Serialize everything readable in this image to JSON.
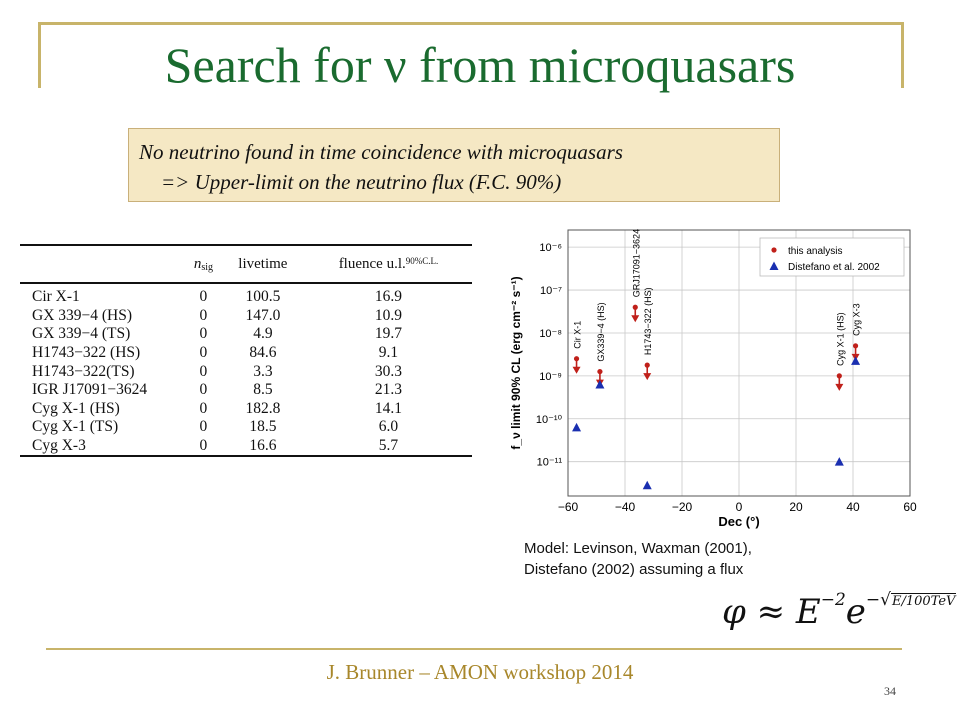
{
  "title": "Search for ν from microquasars",
  "note": {
    "line1": "No neutrino found in time coincidence with microquasars",
    "line2": "=> Upper-limit on the neutrino flux (F.C. 90%)"
  },
  "table": {
    "headers": {
      "nsig": "n",
      "nsig_sub": "sig",
      "livetime": "livetime",
      "fluence": "fluence u.l.",
      "fluence_sup": "90%C.L."
    },
    "rows": [
      {
        "source": "Cir X-1",
        "nsig": "0",
        "livetime": "100.5",
        "fluence": "16.9"
      },
      {
        "source": "GX 339−4 (HS)",
        "nsig": "0",
        "livetime": "147.0",
        "fluence": "10.9"
      },
      {
        "source": "GX 339−4 (TS)",
        "nsig": "0",
        "livetime": "4.9",
        "fluence": "19.7"
      },
      {
        "source": "H1743−322 (HS)",
        "nsig": "0",
        "livetime": "84.6",
        "fluence": "9.1"
      },
      {
        "source": "H1743−322(TS)",
        "nsig": "0",
        "livetime": "3.3",
        "fluence": "30.3"
      },
      {
        "source": "IGR J17091−3624",
        "nsig": "0",
        "livetime": "8.5",
        "fluence": "21.3"
      },
      {
        "source": "Cyg X-1 (HS)",
        "nsig": "0",
        "livetime": "182.8",
        "fluence": "14.1"
      },
      {
        "source": "Cyg X-1 (TS)",
        "nsig": "0",
        "livetime": "18.5",
        "fluence": "6.0"
      },
      {
        "source": "Cyg X-3",
        "nsig": "0",
        "livetime": "16.6",
        "fluence": "5.7"
      }
    ]
  },
  "chart_data": {
    "type": "scatter",
    "xlabel": "Dec (°)",
    "ylabel": "f_ν limit 90% CL (erg cm⁻² s⁻¹)",
    "xlim": [
      -60,
      60
    ],
    "ylim_log10": [
      -11.8,
      -5.6
    ],
    "log_y": true,
    "grid": true,
    "legend_position": "top-right",
    "x_ticks": [
      "−60",
      "−40",
      "−20",
      "0",
      "20",
      "40",
      "60"
    ],
    "y_ticks": [
      "10⁻¹¹",
      "10⁻¹⁰",
      "10⁻⁹",
      "10⁻⁸",
      "10⁻⁷",
      "10⁻⁶"
    ],
    "series": [
      {
        "name": "this analysis",
        "color": "#c0201a",
        "marker": "circle-with-down-arrow",
        "points": [
          {
            "x": -57,
            "log10_y": -8.6
          },
          {
            "x": -48.8,
            "log10_y": -8.9
          },
          {
            "x": -36.4,
            "log10_y": -7.4
          },
          {
            "x": -32.2,
            "log10_y": -8.75
          },
          {
            "x": 35.2,
            "log10_y": -9.0
          },
          {
            "x": 40.9,
            "log10_y": -8.3
          }
        ]
      },
      {
        "name": "Distefano et al. 2002",
        "color": "#1a2fb0",
        "marker": "triangle",
        "points": [
          {
            "x": -57,
            "log10_y": -10.2
          },
          {
            "x": -48.8,
            "log10_y": -9.2
          },
          {
            "x": -32.2,
            "log10_y": -11.55
          },
          {
            "x": 35.2,
            "log10_y": -11.0
          },
          {
            "x": 40.9,
            "log10_y": -8.65
          }
        ]
      }
    ],
    "annotations": [
      {
        "text": "Cir X-1",
        "x": -57
      },
      {
        "text": "GX339−4 (HS)",
        "x": -48.8
      },
      {
        "text": "GRJ17091−3624",
        "x": -36.4
      },
      {
        "text": "H1743−322 (HS)",
        "x": -32.2
      },
      {
        "text": "Cyg X-1 (HS)",
        "x": 35.2
      },
      {
        "text": "Cyg X-3",
        "x": 40.9
      }
    ]
  },
  "model": {
    "line1": "Model: Levinson, Waxman (2001),",
    "line2": "Distefano (2002) assuming a flux"
  },
  "formula": {
    "lhs": "φ ≈ E",
    "exp1": "−2",
    "e": "e",
    "exp2_prefix": "−√",
    "exp2_radicand": "E/100TeV"
  },
  "footer": "J. Brunner – AMON workshop 2014",
  "page_number": "34"
}
